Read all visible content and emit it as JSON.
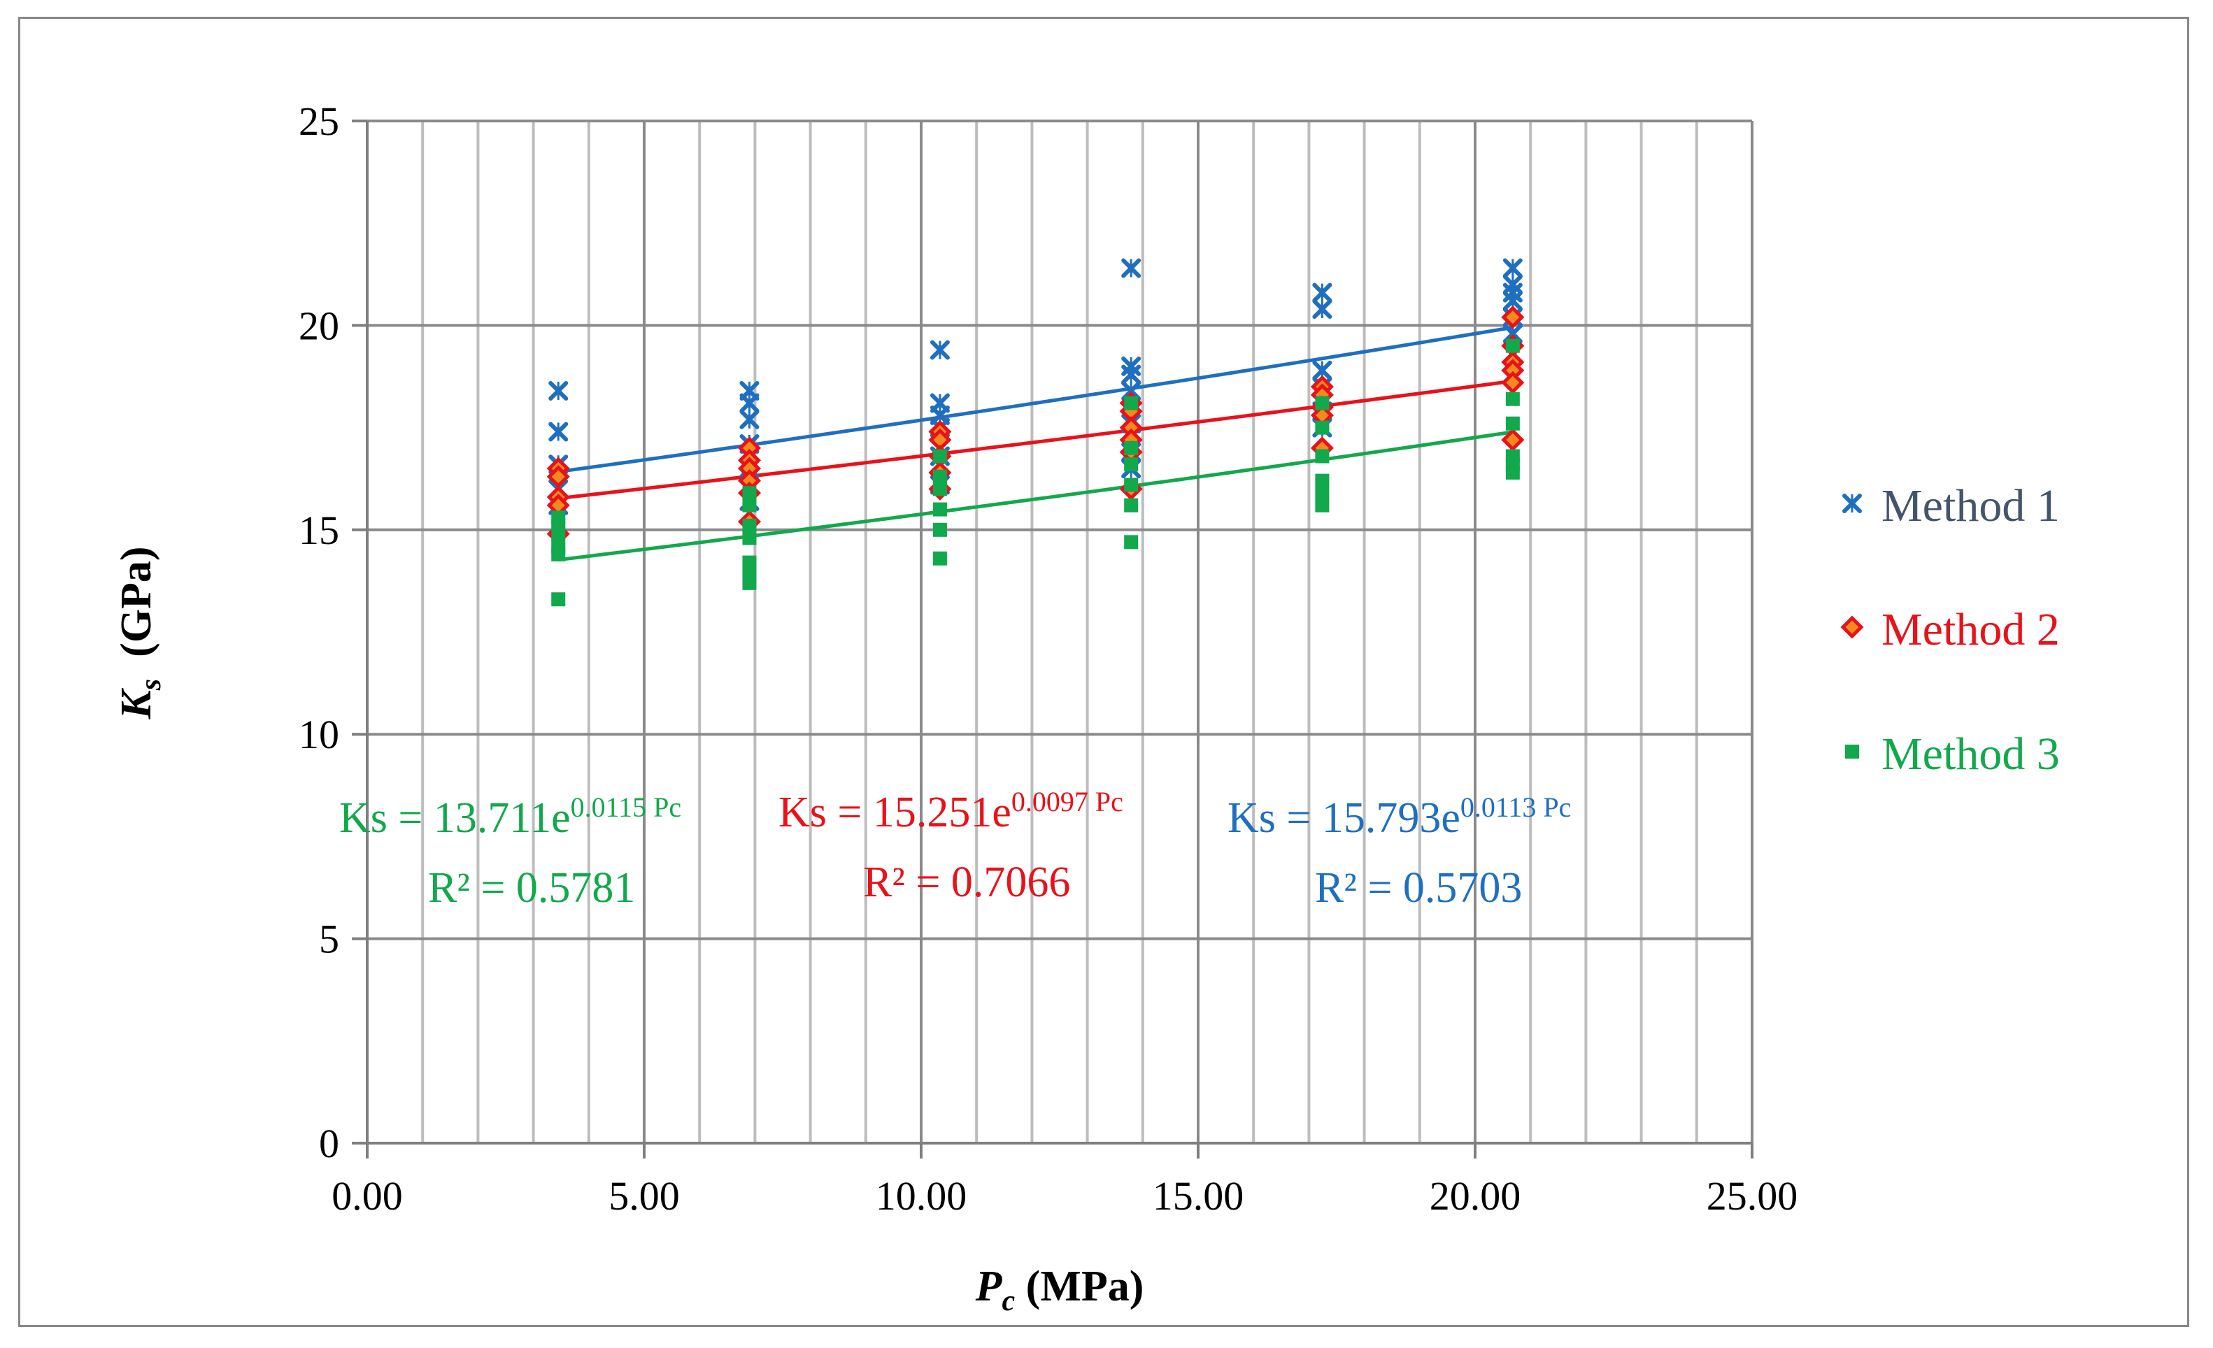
{
  "chart_data": {
    "type": "scatter",
    "title": "",
    "xlabel_main": "P",
    "xlabel_sub": "c",
    "xlabel_unit": " (MPa)",
    "ylabel_main": "K",
    "ylabel_sub": "s",
    "ylabel_unit": "  (GPa)",
    "xlim": [
      0,
      25
    ],
    "ylim": [
      0,
      25
    ],
    "x_ticks": [
      "0.00",
      "5.00",
      "10.00",
      "15.00",
      "20.00",
      "25.00"
    ],
    "y_ticks": [
      "0",
      "5",
      "10",
      "15",
      "20",
      "25"
    ],
    "x_tick_values": [
      0,
      5,
      10,
      15,
      20,
      25
    ],
    "y_tick_values": [
      0,
      5,
      10,
      15,
      20,
      25
    ],
    "grid": true,
    "legend_position": "right",
    "series": [
      {
        "name": "Method 1",
        "color": "#1f6fc0",
        "marker": "x",
        "points": [
          [
            3.45,
            18.4
          ],
          [
            3.45,
            17.4
          ],
          [
            3.45,
            16.6
          ],
          [
            3.45,
            16.0
          ],
          [
            3.45,
            15.6
          ],
          [
            6.9,
            18.4
          ],
          [
            6.9,
            18.1
          ],
          [
            6.9,
            17.7
          ],
          [
            6.9,
            17.1
          ],
          [
            6.9,
            16.5
          ],
          [
            6.9,
            15.7
          ],
          [
            10.34,
            19.4
          ],
          [
            10.34,
            18.1
          ],
          [
            10.34,
            17.8
          ],
          [
            10.34,
            17.5
          ],
          [
            10.34,
            16.8
          ],
          [
            10.34,
            16.1
          ],
          [
            13.79,
            21.4
          ],
          [
            13.79,
            19.0
          ],
          [
            13.79,
            18.8
          ],
          [
            13.79,
            18.4
          ],
          [
            13.79,
            17.6
          ],
          [
            13.79,
            16.9
          ],
          [
            13.79,
            16.5
          ],
          [
            17.24,
            20.8
          ],
          [
            17.24,
            20.4
          ],
          [
            17.24,
            18.9
          ],
          [
            17.24,
            18.5
          ],
          [
            17.24,
            17.9
          ],
          [
            17.24,
            17.5
          ],
          [
            20.68,
            21.4
          ],
          [
            20.68,
            21.0
          ],
          [
            20.68,
            20.8
          ],
          [
            20.68,
            20.6
          ],
          [
            20.68,
            20.2
          ],
          [
            20.68,
            19.8
          ]
        ],
        "trend": {
          "a": 15.793,
          "b": 0.0113,
          "x_range": [
            3.45,
            20.68
          ]
        },
        "equation_main": "Ks = 15.793e",
        "equation_exp": "0.0113 Pc",
        "r2": "R² = 0.5703"
      },
      {
        "name": "Method 2",
        "color": "#e8121a",
        "marker": "diamond",
        "points": [
          [
            3.45,
            16.5
          ],
          [
            3.45,
            16.3
          ],
          [
            3.45,
            15.8
          ],
          [
            3.45,
            15.6
          ],
          [
            3.45,
            14.9
          ],
          [
            6.9,
            17.0
          ],
          [
            6.9,
            16.7
          ],
          [
            6.9,
            16.5
          ],
          [
            6.9,
            16.2
          ],
          [
            6.9,
            15.9
          ],
          [
            6.9,
            15.2
          ],
          [
            10.34,
            17.4
          ],
          [
            10.34,
            17.2
          ],
          [
            10.34,
            16.8
          ],
          [
            10.34,
            16.4
          ],
          [
            10.34,
            16.0
          ],
          [
            13.79,
            18.1
          ],
          [
            13.79,
            17.9
          ],
          [
            13.79,
            17.5
          ],
          [
            13.79,
            17.2
          ],
          [
            13.79,
            16.9
          ],
          [
            13.79,
            16.0
          ],
          [
            17.24,
            18.5
          ],
          [
            17.24,
            18.3
          ],
          [
            17.24,
            18.0
          ],
          [
            17.24,
            17.8
          ],
          [
            17.24,
            17.0
          ],
          [
            20.68,
            20.2
          ],
          [
            20.68,
            19.5
          ],
          [
            20.68,
            19.1
          ],
          [
            20.68,
            18.9
          ],
          [
            20.68,
            18.6
          ],
          [
            20.68,
            17.2
          ]
        ],
        "trend": {
          "a": 15.251,
          "b": 0.0097,
          "x_range": [
            3.45,
            20.68
          ]
        },
        "equation_main": "Ks = 15.251e",
        "equation_exp": "0.0097 Pc",
        "r2": "R² = 0.7066"
      },
      {
        "name": "Method 3",
        "color": "#12a84c",
        "marker": "square",
        "points": [
          [
            3.45,
            15.3
          ],
          [
            3.45,
            15.1
          ],
          [
            3.45,
            14.9
          ],
          [
            3.45,
            14.6
          ],
          [
            3.45,
            14.4
          ],
          [
            3.45,
            13.3
          ],
          [
            6.9,
            15.9
          ],
          [
            6.9,
            15.6
          ],
          [
            6.9,
            15.1
          ],
          [
            6.9,
            14.8
          ],
          [
            6.9,
            14.2
          ],
          [
            6.9,
            13.9
          ],
          [
            6.9,
            13.7
          ],
          [
            10.34,
            16.8
          ],
          [
            10.34,
            16.3
          ],
          [
            10.34,
            16.0
          ],
          [
            10.34,
            15.5
          ],
          [
            10.34,
            15.0
          ],
          [
            10.34,
            14.3
          ],
          [
            13.79,
            18.1
          ],
          [
            13.79,
            17.0
          ],
          [
            13.79,
            16.6
          ],
          [
            13.79,
            16.1
          ],
          [
            13.79,
            15.6
          ],
          [
            13.79,
            14.7
          ],
          [
            17.24,
            18.1
          ],
          [
            17.24,
            17.5
          ],
          [
            17.24,
            16.8
          ],
          [
            17.24,
            16.2
          ],
          [
            17.24,
            15.9
          ],
          [
            17.24,
            15.6
          ],
          [
            20.68,
            19.5
          ],
          [
            20.68,
            18.2
          ],
          [
            20.68,
            17.6
          ],
          [
            20.68,
            16.8
          ],
          [
            20.68,
            16.6
          ],
          [
            20.68,
            16.4
          ]
        ],
        "trend": {
          "a": 13.711,
          "b": 0.0115,
          "x_range": [
            3.45,
            20.68
          ]
        },
        "equation_main": "Ks = 13.711e",
        "equation_exp": "0.0115 Pc",
        "r2": "R² = 0.5781"
      }
    ]
  }
}
